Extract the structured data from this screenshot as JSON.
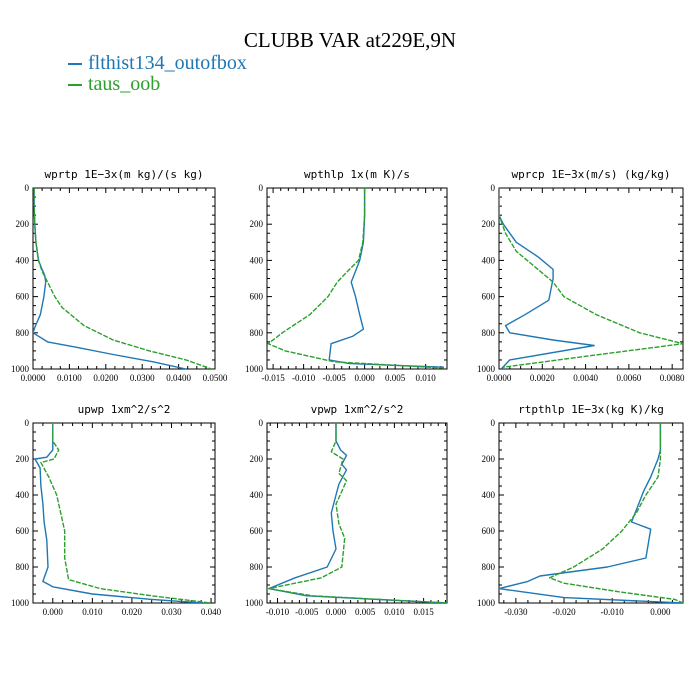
{
  "title": "CLUBB VAR at229E,9N",
  "legend": [
    {
      "name": "flthist134_outofbox",
      "color": "#1f77b4"
    },
    {
      "name": "taus_oob",
      "color": "#2ca02c"
    }
  ],
  "chart_data": [
    {
      "type": "line",
      "title": "wprtp   1E−3x(m kg)/(s kg)",
      "xlim": [
        0,
        0.05
      ],
      "xticks": [
        0,
        0.01,
        0.02,
        0.03,
        0.04,
        0.05
      ],
      "xtick_labels": [
        "0.0000",
        "0.0100",
        "0.0200",
        "0.0300",
        "0.0400",
        "0.0500"
      ],
      "ylim": [
        1000,
        0
      ],
      "yticks": [
        0,
        200,
        400,
        600,
        800,
        1000
      ],
      "ytick_labels": [
        "0",
        "200",
        "400",
        "600",
        "800",
        "1000"
      ],
      "series": [
        {
          "name": "flthist134_outofbox",
          "x": [
            0.0003,
            0.0003,
            0.0005,
            0.0008,
            0.0015,
            0.0025,
            0.0032,
            0.0035,
            0.003,
            0.002,
            0.0005,
            0.0,
            0.004,
            0.012,
            0.022,
            0.033,
            0.042
          ],
          "y": [
            0,
            100,
            200,
            300,
            400,
            450,
            480,
            520,
            600,
            700,
            770,
            800,
            850,
            880,
            920,
            960,
            1000
          ]
        },
        {
          "name": "taus_oob",
          "x": [
            0.0003,
            0.0003,
            0.0005,
            0.0008,
            0.0015,
            0.0025,
            0.004,
            0.006,
            0.008,
            0.014,
            0.022,
            0.032,
            0.042,
            0.049
          ],
          "y": [
            0,
            100,
            200,
            300,
            400,
            460,
            520,
            600,
            660,
            760,
            840,
            900,
            950,
            1000
          ]
        }
      ]
    },
    {
      "type": "line",
      "title": "wpthlp   1x(m K)/s",
      "xlim": [
        -0.016,
        0.0135
      ],
      "xticks": [
        -0.015,
        -0.01,
        -0.005,
        0,
        0.005,
        0.01
      ],
      "xtick_labels": [
        "-0.015",
        "-0.010",
        "-0.005",
        "0.000",
        "0.005",
        "0.010"
      ],
      "ylim": [
        1000,
        0
      ],
      "yticks": [
        0,
        200,
        400,
        600,
        800,
        1000
      ],
      "ytick_labels": [
        "0",
        "200",
        "400",
        "600",
        "800",
        "1000"
      ],
      "series": [
        {
          "name": "flthist134_outofbox",
          "x": [
            0,
            0,
            -0.0002,
            -0.0008,
            -0.0015,
            -0.0022,
            -0.0015,
            -0.0008,
            -0.0002,
            -0.002,
            -0.0055,
            -0.0058,
            -0.0025,
            0.013
          ],
          "y": [
            0,
            150,
            300,
            400,
            460,
            520,
            600,
            700,
            780,
            820,
            860,
            950,
            970,
            990
          ]
        },
        {
          "name": "taus_oob",
          "x": [
            0,
            0,
            -0.0003,
            -0.001,
            -0.0025,
            -0.0045,
            -0.006,
            -0.009,
            -0.0135,
            -0.0158,
            -0.013,
            -0.005,
            0.013
          ],
          "y": [
            0,
            150,
            300,
            400,
            450,
            520,
            600,
            700,
            800,
            860,
            900,
            960,
            995
          ]
        }
      ]
    },
    {
      "type": "line",
      "title": "wprcp   1E−3x(m/s)  (kg/kg)",
      "xlim": [
        0,
        0.0085
      ],
      "xticks": [
        0,
        0.002,
        0.004,
        0.006,
        0.008
      ],
      "xtick_labels": [
        "0.0000",
        "0.0020",
        "0.0040",
        "0.0060",
        "0.0080"
      ],
      "ylim": [
        1000,
        0
      ],
      "yticks": [
        0,
        200,
        400,
        600,
        800,
        1000
      ],
      "ytick_labels": [
        "0",
        "200",
        "400",
        "600",
        "800",
        "1000"
      ],
      "series": [
        {
          "name": "flthist134_outofbox",
          "x": [
            0,
            0,
            0.0002,
            0.0008,
            0.0018,
            0.0025,
            0.0025,
            0.0023,
            0.0012,
            0.0003,
            0.0005,
            0.0025,
            0.0044,
            0.0005,
            0.0001
          ],
          "y": [
            0,
            150,
            200,
            300,
            380,
            450,
            500,
            620,
            700,
            760,
            800,
            840,
            870,
            950,
            1000
          ]
        },
        {
          "name": "taus_oob",
          "x": [
            0,
            0,
            0.0003,
            0.0008,
            0.0018,
            0.0025,
            0.003,
            0.0045,
            0.0065,
            0.0085,
            0.004,
            0.0002
          ],
          "y": [
            0,
            150,
            250,
            350,
            450,
            520,
            600,
            700,
            800,
            860,
            930,
            990
          ]
        }
      ]
    },
    {
      "type": "line",
      "title": "upwp   1xm^2/s^2",
      "xlim": [
        -0.005,
        0.041
      ],
      "xticks": [
        0,
        0.01,
        0.02,
        0.03,
        0.04
      ],
      "xtick_labels": [
        "0.000",
        "0.010",
        "0.020",
        "0.030",
        "0.040"
      ],
      "ylim": [
        1000,
        0
      ],
      "yticks": [
        0,
        200,
        400,
        600,
        800,
        1000
      ],
      "ytick_labels": [
        "0",
        "200",
        "400",
        "600",
        "800",
        "1000"
      ],
      "series": [
        {
          "name": "flthist134_outofbox",
          "x": [
            0.0,
            0.0,
            -0.0015,
            -0.0045,
            -0.0032,
            -0.003,
            -0.0025,
            -0.0022,
            -0.0015,
            -0.0012,
            -0.0025,
            0.0,
            0.01,
            0.025,
            0.038
          ],
          "y": [
            0,
            150,
            190,
            200,
            250,
            350,
            450,
            550,
            650,
            800,
            880,
            910,
            950,
            980,
            1000
          ]
        },
        {
          "name": "taus_oob",
          "x": [
            0.0,
            0.0,
            0.0015,
            0.0003,
            -0.003,
            -0.001,
            0.001,
            0.002,
            0.003,
            0.003,
            0.004,
            0.012,
            0.025,
            0.04
          ],
          "y": [
            0,
            100,
            150,
            200,
            220,
            300,
            400,
            500,
            600,
            750,
            870,
            920,
            960,
            1000
          ]
        }
      ]
    },
    {
      "type": "line",
      "title": "vpwp   1xm^2/s^2",
      "xlim": [
        -0.0118,
        0.019
      ],
      "xticks": [
        -0.01,
        -0.005,
        0,
        0.005,
        0.01,
        0.015
      ],
      "xtick_labels": [
        "-0.010",
        "-0.005",
        "0.000",
        "0.005",
        "0.010",
        "0.015"
      ],
      "ylim": [
        1000,
        0
      ],
      "yticks": [
        0,
        200,
        400,
        600,
        800,
        1000
      ],
      "ytick_labels": [
        "0",
        "200",
        "400",
        "600",
        "800",
        "1000"
      ],
      "series": [
        {
          "name": "flthist134_outofbox",
          "x": [
            0.0,
            0.0,
            0.0008,
            0.0018,
            0.001,
            0.0018,
            0.0005,
            0.0,
            -0.0008,
            -0.0005,
            0.0,
            -0.0015,
            -0.007,
            -0.0115,
            -0.005,
            0.01,
            0.019
          ],
          "y": [
            0,
            100,
            150,
            180,
            230,
            260,
            340,
            400,
            500,
            600,
            700,
            800,
            860,
            920,
            960,
            985,
            1000
          ]
        },
        {
          "name": "taus_oob",
          "x": [
            0.0,
            0.0,
            -0.0008,
            0.0012,
            0.0005,
            0.0018,
            0.001,
            0.0,
            0.0005,
            0.0015,
            0.001,
            -0.0025,
            -0.0115,
            -0.004,
            0.019
          ],
          "y": [
            0,
            100,
            160,
            200,
            280,
            320,
            380,
            450,
            560,
            640,
            800,
            860,
            920,
            960,
            1000
          ]
        }
      ]
    },
    {
      "type": "line",
      "title": "rtpthlp   1E−3x(kg K)/kg",
      "xlim": [
        -0.0335,
        0.0047
      ],
      "xticks": [
        -0.03,
        -0.02,
        -0.01,
        0
      ],
      "xtick_labels": [
        "-0.030",
        "-0.020",
        "-0.010",
        "0.000"
      ],
      "ylim": [
        1000,
        0
      ],
      "yticks": [
        0,
        200,
        400,
        600,
        800,
        1000
      ],
      "ytick_labels": [
        "0",
        "200",
        "400",
        "600",
        "800",
        "1000"
      ],
      "series": [
        {
          "name": "flthist134_outofbox",
          "x": [
            0.0,
            0.0,
            -0.0005,
            -0.002,
            -0.0035,
            -0.0045,
            -0.006,
            -0.002,
            -0.003,
            -0.011,
            -0.025,
            -0.0275,
            -0.0335,
            -0.02,
            0.0047
          ],
          "y": [
            0,
            150,
            200,
            300,
            380,
            450,
            550,
            590,
            750,
            800,
            850,
            880,
            920,
            970,
            1000
          ]
        },
        {
          "name": "taus_oob",
          "x": [
            0.0,
            0.0,
            -0.0005,
            -0.003,
            -0.005,
            -0.008,
            -0.012,
            -0.018,
            -0.023,
            -0.02,
            -0.008,
            0.003,
            0.0047
          ],
          "y": [
            0,
            200,
            300,
            400,
            500,
            600,
            700,
            800,
            860,
            890,
            940,
            980,
            1000
          ]
        }
      ]
    }
  ]
}
